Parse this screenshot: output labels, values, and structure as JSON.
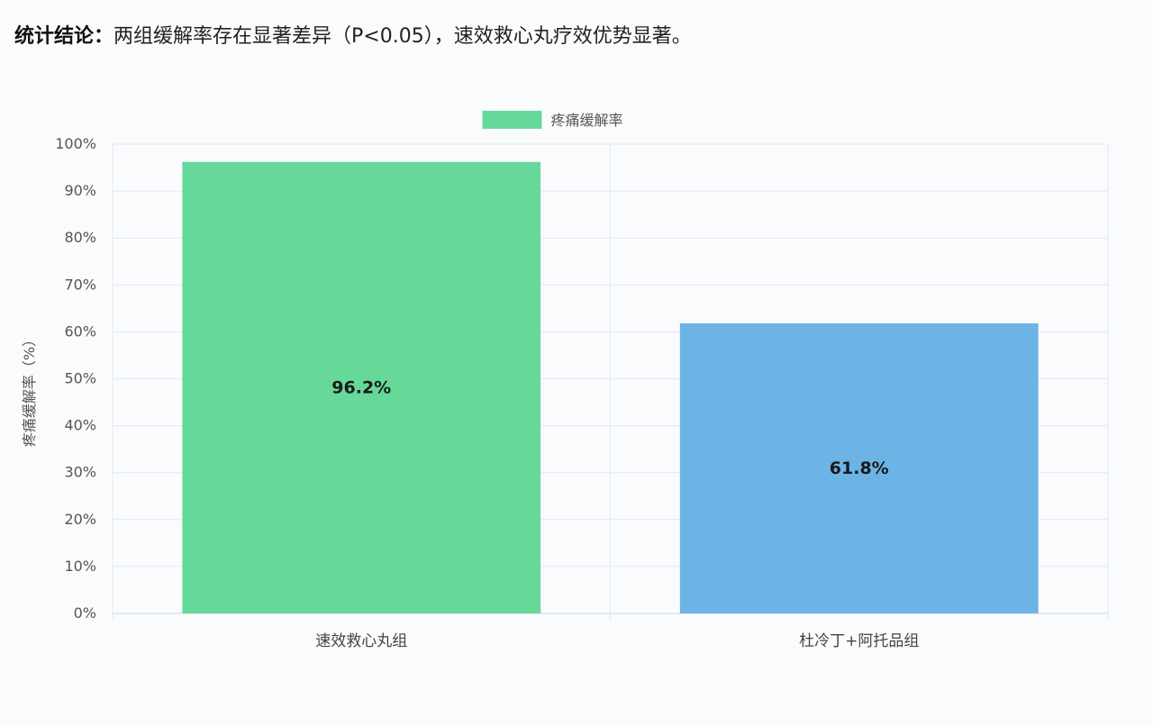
{
  "conclusion": {
    "label": "统计结论：",
    "text": "两组缓解率存在显著差异（P<0.05），速效救心丸疗效优势显著。"
  },
  "chart_data": {
    "type": "bar",
    "categories": [
      "速效救心丸组",
      "杜冷丁+阿托品组"
    ],
    "series": [
      {
        "name": "疼痛缓解率",
        "values": [
          96.2,
          61.8
        ],
        "colors": [
          "#66d99a",
          "#6cb4e6"
        ]
      }
    ],
    "data_labels": [
      "96.2%",
      "61.8%"
    ],
    "ylabel": "疼痛缓解率（%）",
    "ylim": [
      0,
      100
    ],
    "yticks": [
      "0%",
      "10%",
      "20%",
      "30%",
      "40%",
      "50%",
      "60%",
      "70%",
      "80%",
      "90%",
      "100%"
    ],
    "grid": true,
    "legend": "top-center"
  }
}
